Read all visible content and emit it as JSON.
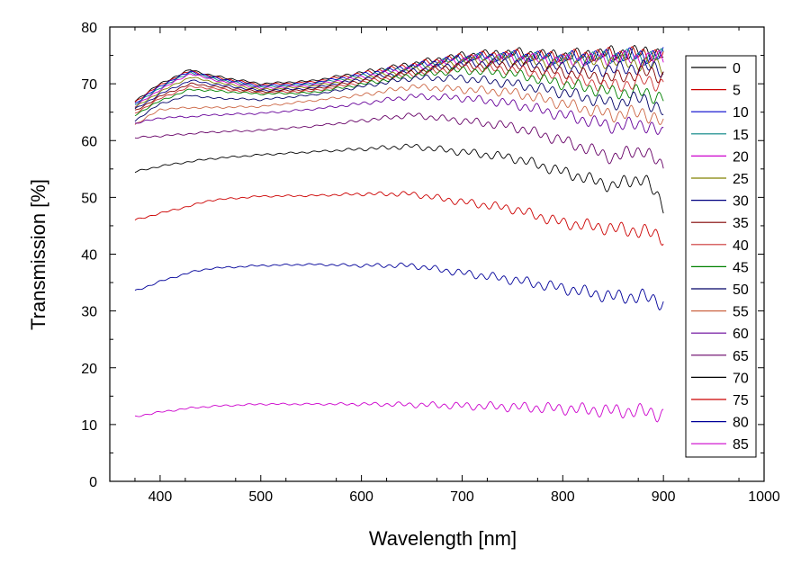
{
  "chart_data": {
    "type": "line",
    "title": "",
    "xlabel": "Wavelength [nm]",
    "ylabel": "Transmission [%]",
    "xlim": [
      350,
      1000
    ],
    "ylim": [
      0,
      80
    ],
    "xticks": [
      400,
      500,
      600,
      700,
      800,
      900,
      1000
    ],
    "yticks": [
      0,
      10,
      20,
      30,
      40,
      50,
      60,
      70,
      80
    ],
    "grid": false,
    "legend_position": "right",
    "x": [
      375,
      400,
      430,
      450,
      500,
      550,
      600,
      650,
      700,
      750,
      800,
      850,
      880,
      900
    ],
    "series": [
      {
        "name": "0",
        "color": "#000000",
        "values": [
          67.0,
          70.0,
          72.5,
          71.5,
          70.0,
          70.5,
          72.0,
          73.5,
          75.0,
          75.5,
          75.0,
          75.5,
          75.5,
          75.5
        ]
      },
      {
        "name": "5",
        "color": "#cc0000",
        "values": [
          66.8,
          69.8,
          72.3,
          71.3,
          69.8,
          70.3,
          71.8,
          73.3,
          74.8,
          75.2,
          74.8,
          75.3,
          75.2,
          75.3
        ]
      },
      {
        "name": "10",
        "color": "#0000cc",
        "values": [
          66.5,
          69.6,
          72.2,
          71.2,
          69.6,
          70.1,
          71.6,
          73.1,
          74.6,
          75.0,
          74.6,
          75.0,
          75.0,
          75.0
        ]
      },
      {
        "name": "15",
        "color": "#008080",
        "values": [
          66.3,
          69.3,
          72.0,
          71.0,
          69.4,
          69.9,
          71.4,
          72.9,
          74.4,
          74.8,
          74.3,
          74.8,
          74.7,
          74.8
        ]
      },
      {
        "name": "20",
        "color": "#cc00cc",
        "values": [
          66.0,
          69.0,
          71.8,
          70.8,
          69.2,
          69.7,
          71.2,
          72.7,
          74.2,
          74.6,
          74.0,
          74.5,
          74.4,
          74.5
        ]
      },
      {
        "name": "25",
        "color": "#808000",
        "values": [
          65.8,
          68.6,
          71.2,
          70.4,
          69.0,
          69.5,
          71.0,
          72.4,
          73.9,
          74.2,
          73.5,
          74.0,
          73.5,
          73.0
        ]
      },
      {
        "name": "30",
        "color": "#000080",
        "values": [
          65.5,
          68.2,
          70.6,
          70.0,
          68.8,
          69.2,
          70.8,
          72.2,
          73.5,
          73.8,
          72.8,
          72.5,
          73.0,
          72.5
        ]
      },
      {
        "name": "35",
        "color": "#800000",
        "values": [
          65.2,
          67.8,
          70.0,
          69.6,
          68.6,
          69.0,
          70.5,
          72.0,
          73.2,
          73.2,
          72.0,
          71.0,
          72.0,
          71.5
        ]
      },
      {
        "name": "40",
        "color": "#cc3333",
        "values": [
          64.8,
          67.4,
          69.5,
          69.2,
          68.4,
          68.7,
          70.2,
          71.7,
          72.8,
          72.5,
          71.0,
          69.5,
          70.5,
          70.0
        ]
      },
      {
        "name": "45",
        "color": "#008000",
        "values": [
          64.5,
          67.0,
          69.0,
          68.8,
          68.2,
          68.4,
          69.9,
          71.5,
          72.4,
          71.8,
          70.0,
          68.5,
          68.5,
          67.5
        ]
      },
      {
        "name": "50",
        "color": "#000066",
        "values": [
          63.5,
          66.5,
          68.0,
          67.5,
          67.2,
          68.0,
          69.5,
          71.0,
          71.0,
          70.0,
          68.5,
          66.5,
          67.5,
          65.0
        ]
      },
      {
        "name": "55",
        "color": "#cc6644",
        "values": [
          62.8,
          65.5,
          65.8,
          65.8,
          66.0,
          67.0,
          68.0,
          69.5,
          69.0,
          68.5,
          66.5,
          64.5,
          65.0,
          63.0
        ]
      },
      {
        "name": "60",
        "color": "#660099",
        "values": [
          63.0,
          64.0,
          64.2,
          64.5,
          64.8,
          65.5,
          66.5,
          67.8,
          67.5,
          66.5,
          64.5,
          62.5,
          63.0,
          61.0
        ]
      },
      {
        "name": "65",
        "color": "#660066",
        "values": [
          60.5,
          60.8,
          61.2,
          61.5,
          61.8,
          62.5,
          63.5,
          64.5,
          63.5,
          62.5,
          60.0,
          57.0,
          58.5,
          55.0
        ]
      },
      {
        "name": "70",
        "color": "#000000",
        "values": [
          54.5,
          55.5,
          56.3,
          56.8,
          57.5,
          58.0,
          58.5,
          59.0,
          58.0,
          57.0,
          54.5,
          52.0,
          53.5,
          48.5
        ]
      },
      {
        "name": "75",
        "color": "#cc0000",
        "values": [
          46.0,
          47.2,
          48.5,
          49.5,
          50.2,
          50.3,
          50.6,
          50.6,
          49.2,
          48.0,
          45.5,
          44.5,
          44.0,
          43.0
        ]
      },
      {
        "name": "80",
        "color": "#000099",
        "values": [
          33.5,
          35.2,
          36.8,
          37.5,
          38.0,
          38.2,
          38.0,
          38.0,
          36.7,
          35.5,
          34.0,
          32.5,
          32.5,
          31.5
        ]
      },
      {
        "name": "85",
        "color": "#cc00cc",
        "values": [
          11.4,
          12.2,
          12.9,
          13.2,
          13.6,
          13.6,
          13.6,
          13.5,
          13.3,
          13.1,
          12.8,
          12.4,
          12.3,
          11.8
        ]
      }
    ]
  }
}
